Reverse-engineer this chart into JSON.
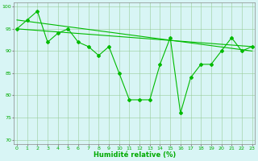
{
  "line_jagged": {
    "x": [
      0,
      1,
      2,
      3,
      4,
      5,
      6,
      7,
      8,
      9,
      10,
      11,
      12,
      13,
      14,
      15,
      16,
      17,
      18,
      19,
      20,
      21,
      22,
      23
    ],
    "y": [
      95,
      97,
      99,
      92,
      94,
      95,
      92,
      91,
      89,
      91,
      85,
      79,
      79,
      79,
      87,
      93,
      76,
      84,
      87,
      87,
      90,
      93,
      90,
      91
    ]
  },
  "line_trend1": {
    "x": [
      0,
      23
    ],
    "y": [
      97,
      90
    ]
  },
  "line_trend2": {
    "x": [
      0,
      23
    ],
    "y": [
      95,
      91
    ]
  },
  "background_color": "#d8f5f5",
  "grid_color": "#99cc99",
  "line_color": "#00bb00",
  "xlabel": "Humidité relative (%)",
  "xlabel_color": "#00aa00",
  "xlabel_fontsize": 6,
  "ylabel_ticks": [
    70,
    75,
    80,
    85,
    90,
    95,
    100
  ],
  "ylim": [
    69,
    101
  ],
  "xlim": [
    -0.3,
    23.3
  ],
  "xtick_labels": [
    "0",
    "1",
    "2",
    "3",
    "4",
    "5",
    "6",
    "7",
    "8",
    "9",
    "10",
    "11",
    "12",
    "13",
    "14",
    "15",
    "16",
    "17",
    "18",
    "19",
    "20",
    "21",
    "22",
    "23"
  ],
  "xticks": [
    0,
    1,
    2,
    3,
    4,
    5,
    6,
    7,
    8,
    9,
    10,
    11,
    12,
    13,
    14,
    15,
    16,
    17,
    18,
    19,
    20,
    21,
    22,
    23
  ],
  "tick_color": "#00aa00",
  "tick_fontsize": 4.5,
  "axis_color": "#888888",
  "marker": "D",
  "markersize": 2.0,
  "linewidth": 0.8
}
